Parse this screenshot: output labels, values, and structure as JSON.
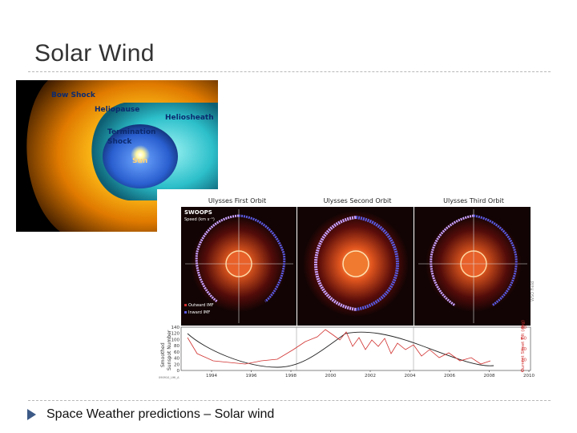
{
  "slide": {
    "title": "Solar Wind",
    "bullet_text": "Space Weather predictions – Solar wind"
  },
  "heliosphere_image": {
    "labels": {
      "bow_shock": "Bow Shock",
      "heliopause": "Heliopause",
      "heliosheath": "Heliosheath",
      "termination_line1": "Termination",
      "termination_line2": "Shock",
      "sun": "Sun"
    },
    "colors": {
      "outer": "#f5a300",
      "sheath": "#2ec6d0",
      "inner": "#2f6fd6"
    }
  },
  "ulysses_figure": {
    "orbit_titles": [
      "Ulysses First Orbit",
      "Ulysses Second Orbit",
      "Ulysses Third Orbit"
    ],
    "instrument": "SWOOPS",
    "speed_label": "Speed (km s⁻¹)",
    "legend": [
      "Outward IMF",
      "Inward IMF"
    ],
    "right_label": "Current Sheet Tilt (deg)",
    "side_credit": "WSO Field",
    "bottom_left_credit": "090910_UHI_A",
    "ylabel_line1": "Smoothed",
    "ylabel_line2": "Sunspot Number",
    "left_ticks": [
      "140",
      "120",
      "100",
      "80",
      "60",
      "40",
      "20",
      "0"
    ],
    "right_ticks": [
      "80",
      "60",
      "40",
      "20",
      "0"
    ],
    "x_ticks": [
      "1994",
      "1996",
      "1998",
      "2000",
      "2002",
      "2004",
      "2006",
      "2008",
      "2010"
    ],
    "colors": {
      "sunspot": "#222222",
      "tilt": "#d0302e",
      "outward": "#d0302e",
      "inward": "#5a5ae0"
    }
  }
}
